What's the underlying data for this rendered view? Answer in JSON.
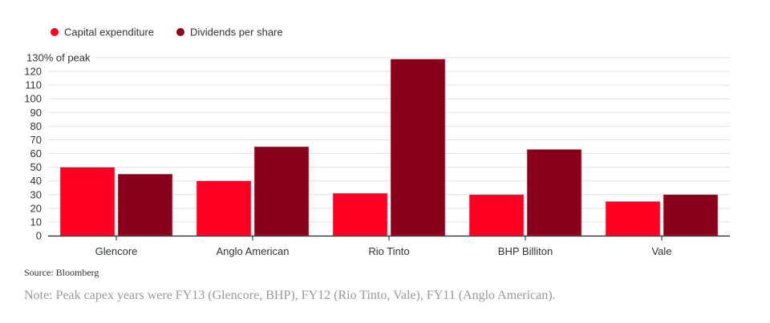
{
  "chart_data": {
    "type": "bar",
    "categories": [
      "Glencore",
      "Anglo American",
      "Rio Tinto",
      "BHP Billiton",
      "Vale"
    ],
    "series": [
      {
        "name": "Capital expenditure",
        "color": "#ff0022",
        "values": [
          50,
          40,
          31,
          30,
          25
        ]
      },
      {
        "name": "Dividends per share",
        "color": "#88001a",
        "values": [
          45,
          65,
          129,
          63,
          30
        ]
      }
    ],
    "ylim": [
      0,
      130
    ],
    "yticks": [
      0,
      10,
      20,
      30,
      40,
      50,
      60,
      70,
      80,
      90,
      100,
      110,
      120,
      130
    ],
    "ytick_labels": [
      "0",
      "10",
      "20",
      "30",
      "40",
      "50",
      "60",
      "70",
      "80",
      "90",
      "100",
      "110",
      "120",
      "130% of peak"
    ],
    "grid": true,
    "legend_position": "top-left",
    "xlabel": "",
    "ylabel": ""
  },
  "source": "Source: Bloomberg",
  "note": "Note: Peak capex years were FY13 (Glencore, BHP), FY12 (Rio Tinto, Vale), FY11 (Anglo American)."
}
